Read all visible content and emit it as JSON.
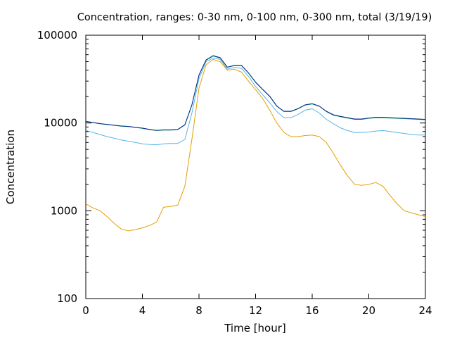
{
  "chart_data": {
    "type": "line",
    "title": "Concentration, ranges: 0-30 nm, 0-100 nm, 0-300 nm, total (3/19/19)",
    "xlabel": "Time [hour]",
    "ylabel": "Concentration",
    "xlim": [
      0,
      24
    ],
    "ylim": [
      100,
      100000
    ],
    "yscale": "log",
    "grid": false,
    "legend": "none",
    "x_ticks": [
      "0",
      "4",
      "8",
      "12",
      "16",
      "20",
      "24"
    ],
    "y_ticks": [
      "100",
      "1000",
      "10000",
      "100000"
    ],
    "x": [
      0,
      0.5,
      1,
      1.5,
      2,
      2.5,
      3,
      3.5,
      4,
      4.5,
      5,
      5.5,
      6,
      6.5,
      7,
      7.5,
      8,
      8.5,
      9,
      9.5,
      10,
      10.5,
      11,
      11.5,
      12,
      12.5,
      13,
      13.5,
      14,
      14.5,
      15,
      15.5,
      16,
      16.5,
      17,
      17.5,
      18,
      18.5,
      19,
      19.5,
      20,
      20.5,
      21,
      21.5,
      22,
      22.5,
      23,
      23.5,
      24
    ],
    "series": [
      {
        "color": "#e69f00",
        "values": [
          1200,
          1080,
          1000,
          860,
          720,
          620,
          590,
          610,
          640,
          680,
          740,
          1100,
          1120,
          1160,
          1900,
          6500,
          25000,
          46000,
          53000,
          50000,
          40000,
          41000,
          38000,
          30000,
          24000,
          19000,
          14000,
          10000,
          7800,
          7000,
          7000,
          7200,
          7300,
          7000,
          6000,
          4500,
          3300,
          2500,
          2000,
          1950,
          2000,
          2100,
          1900,
          1500,
          1200,
          1000,
          950,
          900,
          860
        ]
      },
      {
        "color": "#56b4e9",
        "values": [
          8200,
          7800,
          7400,
          7000,
          6700,
          6400,
          6200,
          6000,
          5800,
          5700,
          5650,
          5800,
          5850,
          5850,
          6500,
          13000,
          32000,
          50000,
          55000,
          53000,
          41000,
          43000,
          42000,
          34000,
          26000,
          21000,
          17000,
          13500,
          11500,
          11500,
          12500,
          14000,
          14500,
          13000,
          11000,
          9800,
          8800,
          8200,
          7800,
          7800,
          7900,
          8100,
          8200,
          8000,
          7800,
          7600,
          7400,
          7300,
          7300
        ]
      },
      {
        "color": "#009e73",
        "values": [
          10400,
          10100,
          9800,
          9600,
          9400,
          9200,
          9100,
          8900,
          8700,
          8400,
          8200,
          8300,
          8300,
          8400,
          9500,
          16000,
          35000,
          52000,
          58000,
          55000,
          43000,
          45000,
          45000,
          37000,
          29000,
          24000,
          20000,
          15500,
          13500,
          13500,
          14500,
          16000,
          16500,
          15500,
          13500,
          12300,
          11800,
          11400,
          11000,
          11000,
          11300,
          11500,
          11500,
          11400,
          11300,
          11200,
          11100,
          11000,
          10900
        ]
      },
      {
        "color": "#0b2a8c",
        "values": [
          10450,
          10150,
          9850,
          9650,
          9450,
          9250,
          9150,
          8950,
          8750,
          8450,
          8250,
          8350,
          8350,
          8450,
          9550,
          16100,
          35200,
          52500,
          58500,
          55500,
          43300,
          45300,
          45300,
          37200,
          29200,
          24200,
          20200,
          15600,
          13600,
          13600,
          14600,
          16100,
          16600,
          15600,
          13600,
          12400,
          11900,
          11500,
          11100,
          11100,
          11400,
          11600,
          11600,
          11500,
          11400,
          11300,
          11200,
          11100,
          11000
        ]
      }
    ]
  }
}
